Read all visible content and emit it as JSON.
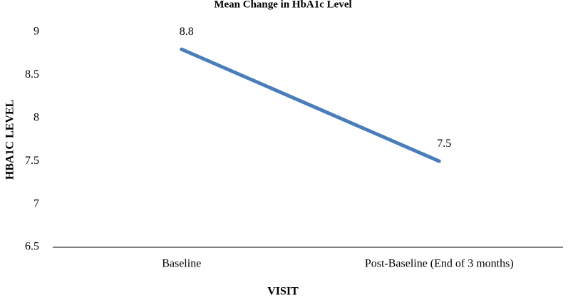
{
  "chart_data": {
    "type": "line",
    "title": "Mean Change in HbA1c Level",
    "x_label": "VISIT",
    "y_label": "HBA1C LEVEL",
    "categories": [
      "Baseline",
      "Post-Baseline (End of 3 months)"
    ],
    "values": [
      8.8,
      7.5
    ],
    "color": "#4a7ebb",
    "ylim": [
      6.5,
      9
    ],
    "yticks": [
      6.5,
      7,
      7.5,
      8,
      8.5,
      9
    ],
    "grid": false
  }
}
